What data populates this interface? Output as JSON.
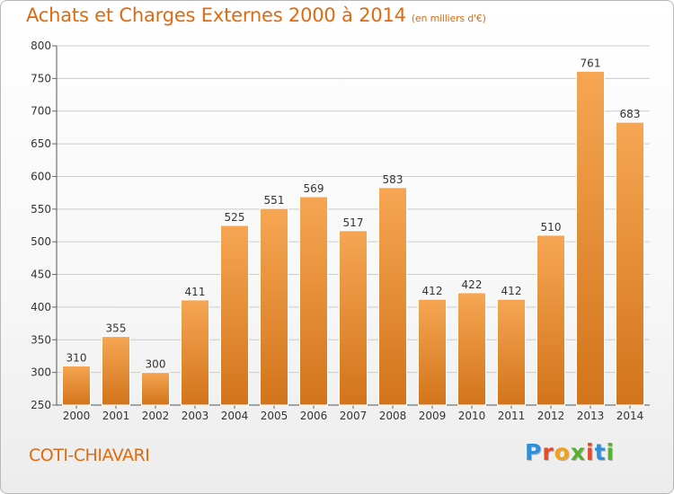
{
  "title": "Achats et Charges Externes 2000 à 2014",
  "subtitle": "(en milliers d'€)",
  "location": "COTI-CHIAVARI",
  "logo": {
    "text": "Proxiti",
    "letter_colors": [
      "#2f8fd8",
      "#e8492a",
      "#f2a31b",
      "#58b031",
      "#e8492a",
      "#2f8fd8",
      "#58b031"
    ]
  },
  "colors": {
    "title": "#e06a10",
    "bar_top": "#f6a653",
    "bar_bottom": "#d2741b",
    "grid": "#cccccc"
  },
  "chart_data": {
    "type": "bar",
    "categories": [
      "2000",
      "2001",
      "2002",
      "2003",
      "2004",
      "2005",
      "2006",
      "2007",
      "2008",
      "2009",
      "2010",
      "2011",
      "2012",
      "2013",
      "2014"
    ],
    "values": [
      310,
      355,
      300,
      411,
      525,
      551,
      569,
      517,
      583,
      412,
      422,
      412,
      510,
      761,
      683
    ],
    "ylim": [
      250,
      800
    ],
    "yticks": [
      250,
      300,
      350,
      400,
      450,
      500,
      550,
      600,
      650,
      700,
      750,
      800
    ],
    "grid": true,
    "data_labels": true
  }
}
